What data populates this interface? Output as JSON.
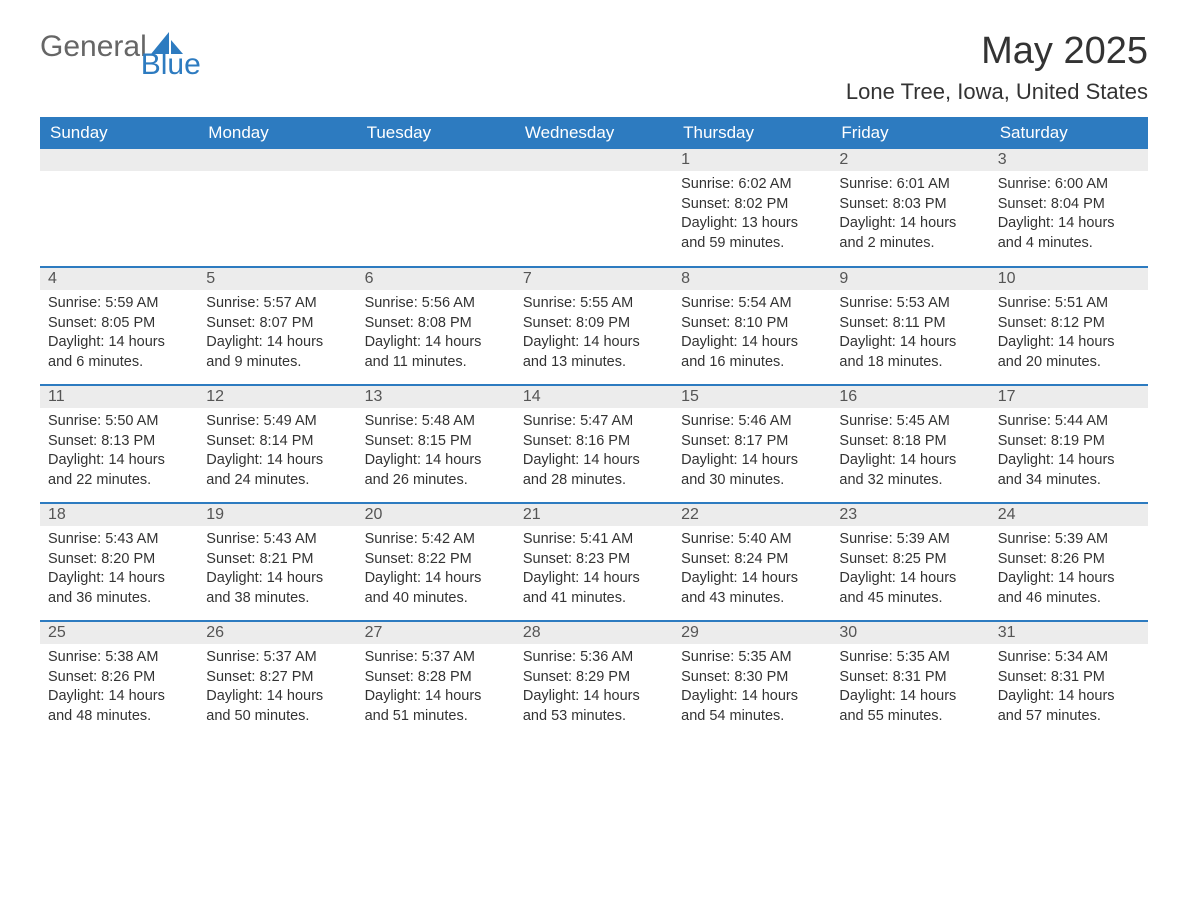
{
  "brand": {
    "part1": "General",
    "part2": "Blue"
  },
  "title": "May 2025",
  "location": "Lone Tree, Iowa, United States",
  "colors": {
    "header_bg": "#2d7bc0",
    "header_text": "#ffffff",
    "daynum_bg": "#ececec",
    "row_border": "#2d7bc0",
    "body_text": "#333333",
    "page_bg": "#ffffff",
    "logo_gray": "#666666",
    "logo_blue": "#2d7bc0"
  },
  "weekdays": [
    "Sunday",
    "Monday",
    "Tuesday",
    "Wednesday",
    "Thursday",
    "Friday",
    "Saturday"
  ],
  "labels": {
    "sunrise": "Sunrise:",
    "sunset": "Sunset:",
    "daylight": "Daylight:"
  },
  "weeks": [
    [
      null,
      null,
      null,
      null,
      {
        "n": "1",
        "sunrise": "6:02 AM",
        "sunset": "8:02 PM",
        "daylight": "13 hours and 59 minutes."
      },
      {
        "n": "2",
        "sunrise": "6:01 AM",
        "sunset": "8:03 PM",
        "daylight": "14 hours and 2 minutes."
      },
      {
        "n": "3",
        "sunrise": "6:00 AM",
        "sunset": "8:04 PM",
        "daylight": "14 hours and 4 minutes."
      }
    ],
    [
      {
        "n": "4",
        "sunrise": "5:59 AM",
        "sunset": "8:05 PM",
        "daylight": "14 hours and 6 minutes."
      },
      {
        "n": "5",
        "sunrise": "5:57 AM",
        "sunset": "8:07 PM",
        "daylight": "14 hours and 9 minutes."
      },
      {
        "n": "6",
        "sunrise": "5:56 AM",
        "sunset": "8:08 PM",
        "daylight": "14 hours and 11 minutes."
      },
      {
        "n": "7",
        "sunrise": "5:55 AM",
        "sunset": "8:09 PM",
        "daylight": "14 hours and 13 minutes."
      },
      {
        "n": "8",
        "sunrise": "5:54 AM",
        "sunset": "8:10 PM",
        "daylight": "14 hours and 16 minutes."
      },
      {
        "n": "9",
        "sunrise": "5:53 AM",
        "sunset": "8:11 PM",
        "daylight": "14 hours and 18 minutes."
      },
      {
        "n": "10",
        "sunrise": "5:51 AM",
        "sunset": "8:12 PM",
        "daylight": "14 hours and 20 minutes."
      }
    ],
    [
      {
        "n": "11",
        "sunrise": "5:50 AM",
        "sunset": "8:13 PM",
        "daylight": "14 hours and 22 minutes."
      },
      {
        "n": "12",
        "sunrise": "5:49 AM",
        "sunset": "8:14 PM",
        "daylight": "14 hours and 24 minutes."
      },
      {
        "n": "13",
        "sunrise": "5:48 AM",
        "sunset": "8:15 PM",
        "daylight": "14 hours and 26 minutes."
      },
      {
        "n": "14",
        "sunrise": "5:47 AM",
        "sunset": "8:16 PM",
        "daylight": "14 hours and 28 minutes."
      },
      {
        "n": "15",
        "sunrise": "5:46 AM",
        "sunset": "8:17 PM",
        "daylight": "14 hours and 30 minutes."
      },
      {
        "n": "16",
        "sunrise": "5:45 AM",
        "sunset": "8:18 PM",
        "daylight": "14 hours and 32 minutes."
      },
      {
        "n": "17",
        "sunrise": "5:44 AM",
        "sunset": "8:19 PM",
        "daylight": "14 hours and 34 minutes."
      }
    ],
    [
      {
        "n": "18",
        "sunrise": "5:43 AM",
        "sunset": "8:20 PM",
        "daylight": "14 hours and 36 minutes."
      },
      {
        "n": "19",
        "sunrise": "5:43 AM",
        "sunset": "8:21 PM",
        "daylight": "14 hours and 38 minutes."
      },
      {
        "n": "20",
        "sunrise": "5:42 AM",
        "sunset": "8:22 PM",
        "daylight": "14 hours and 40 minutes."
      },
      {
        "n": "21",
        "sunrise": "5:41 AM",
        "sunset": "8:23 PM",
        "daylight": "14 hours and 41 minutes."
      },
      {
        "n": "22",
        "sunrise": "5:40 AM",
        "sunset": "8:24 PM",
        "daylight": "14 hours and 43 minutes."
      },
      {
        "n": "23",
        "sunrise": "5:39 AM",
        "sunset": "8:25 PM",
        "daylight": "14 hours and 45 minutes."
      },
      {
        "n": "24",
        "sunrise": "5:39 AM",
        "sunset": "8:26 PM",
        "daylight": "14 hours and 46 minutes."
      }
    ],
    [
      {
        "n": "25",
        "sunrise": "5:38 AM",
        "sunset": "8:26 PM",
        "daylight": "14 hours and 48 minutes."
      },
      {
        "n": "26",
        "sunrise": "5:37 AM",
        "sunset": "8:27 PM",
        "daylight": "14 hours and 50 minutes."
      },
      {
        "n": "27",
        "sunrise": "5:37 AM",
        "sunset": "8:28 PM",
        "daylight": "14 hours and 51 minutes."
      },
      {
        "n": "28",
        "sunrise": "5:36 AM",
        "sunset": "8:29 PM",
        "daylight": "14 hours and 53 minutes."
      },
      {
        "n": "29",
        "sunrise": "5:35 AM",
        "sunset": "8:30 PM",
        "daylight": "14 hours and 54 minutes."
      },
      {
        "n": "30",
        "sunrise": "5:35 AM",
        "sunset": "8:31 PM",
        "daylight": "14 hours and 55 minutes."
      },
      {
        "n": "31",
        "sunrise": "5:34 AM",
        "sunset": "8:31 PM",
        "daylight": "14 hours and 57 minutes."
      }
    ]
  ]
}
